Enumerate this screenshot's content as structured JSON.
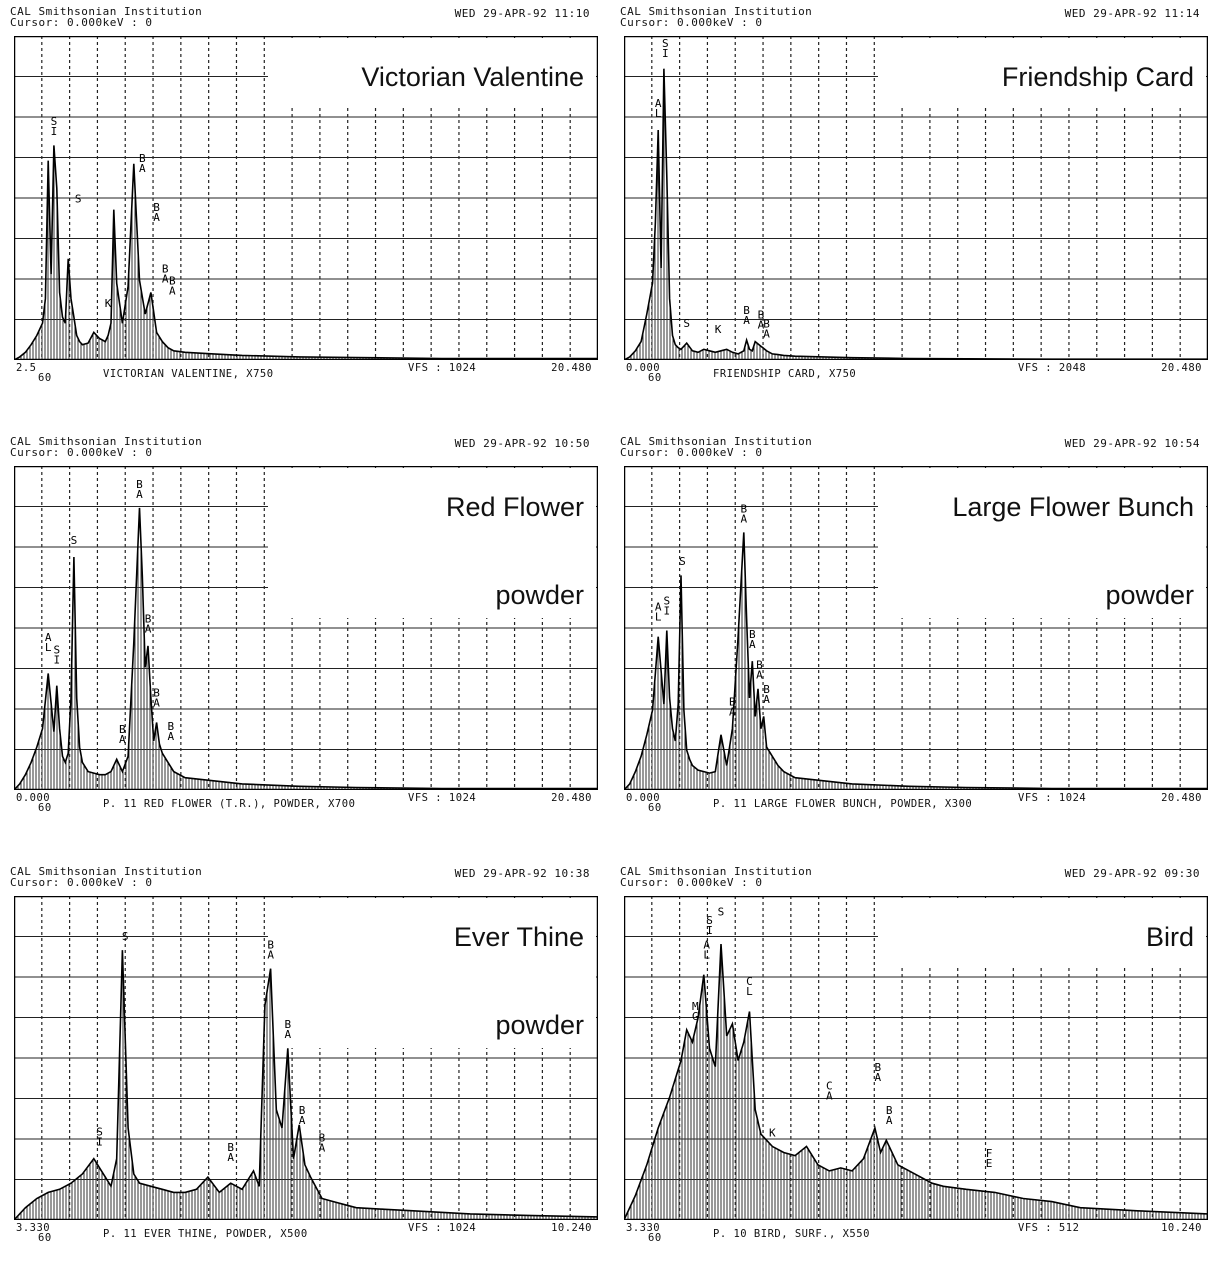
{
  "chart_data": [
    {
      "type": "area",
      "title": "Victorian Valentine",
      "header": {
        "line1": "CAL  Smithsonian Institution",
        "line2": "Cursor: 0.000keV : 0",
        "datetime": "WED 29-APR-92  11:10"
      },
      "footer": {
        "low": "2.5",
        "low2": "60",
        "description": "VICTORIAN VALENTINE, X750",
        "vfs": "VFS : 1024",
        "high": "20.480"
      },
      "xlim": [
        0,
        20.48
      ],
      "ylim": [
        0,
        1024
      ],
      "grid": true,
      "x": [
        0,
        0.2,
        0.4,
        0.6,
        0.8,
        1.0,
        1.1,
        1.2,
        1.3,
        1.4,
        1.5,
        1.6,
        1.7,
        1.8,
        1.9,
        2.0,
        2.1,
        2.2,
        2.3,
        2.4,
        2.6,
        2.8,
        3.0,
        3.2,
        3.3,
        3.4,
        3.5,
        3.6,
        3.8,
        4.0,
        4.2,
        4.4,
        4.6,
        4.8,
        5.0,
        5.2,
        5.4,
        5.6,
        6.0,
        7.0,
        8.0,
        10.0,
        12.0,
        15.0,
        20.48
      ],
      "y": [
        0,
        10,
        25,
        50,
        80,
        120,
        200,
        650,
        280,
        700,
        560,
        220,
        140,
        120,
        330,
        200,
        140,
        80,
        60,
        50,
        55,
        90,
        70,
        60,
        80,
        120,
        490,
        250,
        120,
        240,
        640,
        260,
        150,
        220,
        90,
        60,
        40,
        30,
        25,
        20,
        15,
        10,
        8,
        5,
        5
      ],
      "peaks": [
        {
          "label": "S\nI",
          "x": 1.4,
          "y": 720
        },
        {
          "label": "S",
          "x": 2.25,
          "y": 500
        },
        {
          "label": "K",
          "x": 3.3,
          "y": 160
        },
        {
          "label": "B\nA",
          "x": 4.5,
          "y": 600
        },
        {
          "label": "B\nA",
          "x": 5.0,
          "y": 440
        },
        {
          "label": "B\nA",
          "x": 5.3,
          "y": 240
        },
        {
          "label": "B\nA",
          "x": 5.55,
          "y": 200
        }
      ]
    },
    {
      "type": "area",
      "title": "Friendship Card",
      "header": {
        "line1": "CAL  Smithsonian Institution",
        "line2": "Cursor: 0.000keV : 0",
        "datetime": "WED 29-APR-92  11:14"
      },
      "footer": {
        "low": "0.000",
        "low2": "60",
        "description": "FRIENDSHIP CARD, X750",
        "vfs": "VFS : 2048",
        "high": "20.480"
      },
      "xlim": [
        0,
        20.48
      ],
      "ylim": [
        0,
        2048
      ],
      "grid": true,
      "x": [
        0,
        0.2,
        0.4,
        0.6,
        0.8,
        1.0,
        1.1,
        1.2,
        1.3,
        1.4,
        1.5,
        1.6,
        1.7,
        1.8,
        1.9,
        2.0,
        2.1,
        2.2,
        2.4,
        2.6,
        2.8,
        3.0,
        3.2,
        3.4,
        3.6,
        3.8,
        4.0,
        4.2,
        4.3,
        4.4,
        4.5,
        4.6,
        4.8,
        5.0,
        5.2,
        5.4,
        5.6,
        6.0,
        7.0,
        8.0,
        10.0,
        12.0,
        15.0,
        20.48
      ],
      "y": [
        0,
        20,
        60,
        120,
        300,
        500,
        900,
        1500,
        600,
        1900,
        1200,
        400,
        160,
        100,
        80,
        70,
        90,
        110,
        60,
        50,
        70,
        60,
        50,
        60,
        70,
        50,
        40,
        60,
        130,
        70,
        60,
        120,
        90,
        60,
        40,
        35,
        30,
        25,
        20,
        15,
        10,
        8,
        5,
        5
      ],
      "peaks": [
        {
          "label": "S\nI",
          "x": 1.45,
          "y": 1950
        },
        {
          "label": "A\nL",
          "x": 1.2,
          "y": 1560
        },
        {
          "label": "S",
          "x": 2.2,
          "y": 190
        },
        {
          "label": "K",
          "x": 3.3,
          "y": 150
        },
        {
          "label": "B\nA",
          "x": 4.3,
          "y": 210
        },
        {
          "label": "B\nA",
          "x": 4.8,
          "y": 180
        },
        {
          "label": "B\nA",
          "x": 5.0,
          "y": 120
        }
      ]
    },
    {
      "type": "area",
      "title": "Red Flower",
      "subtitle": "powder",
      "header": {
        "line1": "CAL  Smithsonian Institution",
        "line2": "Cursor: 0.000keV : 0",
        "datetime": "WED 29-APR-92  10:50"
      },
      "footer": {
        "low": "0.000",
        "low2": "60",
        "description": "P. 11 RED FLOWER (T.R.), POWDER, X700",
        "vfs": "VFS : 1024",
        "high": "20.480"
      },
      "xlim": [
        0,
        20.48
      ],
      "ylim": [
        0,
        1024
      ],
      "grid": true,
      "x": [
        0,
        0.2,
        0.4,
        0.6,
        0.8,
        1.0,
        1.2,
        1.4,
        1.5,
        1.6,
        1.7,
        1.8,
        1.9,
        2.0,
        2.1,
        2.2,
        2.3,
        2.4,
        2.6,
        2.8,
        3.0,
        3.2,
        3.4,
        3.6,
        3.8,
        4.0,
        4.2,
        4.4,
        4.5,
        4.6,
        4.7,
        4.8,
        4.9,
        5.0,
        5.1,
        5.2,
        5.4,
        5.6,
        6.0,
        7.0,
        8.0,
        10.0,
        12.0,
        15.0,
        20.48
      ],
      "y": [
        0,
        20,
        50,
        90,
        140,
        200,
        380,
        190,
        340,
        200,
        110,
        90,
        120,
        300,
        760,
        300,
        140,
        90,
        60,
        55,
        50,
        50,
        60,
        100,
        60,
        110,
        480,
        920,
        700,
        400,
        470,
        300,
        160,
        220,
        150,
        120,
        90,
        60,
        40,
        30,
        20,
        12,
        8,
        5,
        5
      ],
      "peaks": [
        {
          "label": "A\nL",
          "x": 1.2,
          "y": 440
        },
        {
          "label": "S\nI",
          "x": 1.5,
          "y": 400
        },
        {
          "label": "S",
          "x": 2.1,
          "y": 790
        },
        {
          "label": "B\nA",
          "x": 3.8,
          "y": 140
        },
        {
          "label": "B\nA",
          "x": 4.4,
          "y": 940
        },
        {
          "label": "B\nA",
          "x": 4.7,
          "y": 500
        },
        {
          "label": "B\nA",
          "x": 5.0,
          "y": 260
        },
        {
          "label": "B\nA",
          "x": 5.5,
          "y": 150
        }
      ]
    },
    {
      "type": "area",
      "title": "Large Flower Bunch",
      "subtitle": "powder",
      "header": {
        "line1": "CAL  Smithsonian Institution",
        "line2": "Cursor: 0.000keV : 0",
        "datetime": "WED 29-APR-92  10:54"
      },
      "footer": {
        "low": "0.000",
        "low2": "60",
        "description": "P. 11 LARGE FLOWER BUNCH, POWDER, X300",
        "vfs": "VFS : 1024",
        "high": "20.480"
      },
      "xlim": [
        0,
        20.48
      ],
      "ylim": [
        0,
        1024
      ],
      "grid": true,
      "x": [
        0,
        0.2,
        0.4,
        0.6,
        0.8,
        1.0,
        1.2,
        1.4,
        1.5,
        1.6,
        1.7,
        1.8,
        1.9,
        2.0,
        2.1,
        2.2,
        2.3,
        2.4,
        2.6,
        2.8,
        3.0,
        3.2,
        3.4,
        3.6,
        3.8,
        4.0,
        4.2,
        4.3,
        4.4,
        4.5,
        4.6,
        4.7,
        4.8,
        4.9,
        5.0,
        5.2,
        5.4,
        5.6,
        6.0,
        7.0,
        8.0,
        10.0,
        12.0,
        15.0,
        20.48
      ],
      "y": [
        0,
        20,
        60,
        110,
        180,
        260,
        500,
        280,
        520,
        300,
        200,
        160,
        280,
        700,
        260,
        130,
        100,
        80,
        65,
        60,
        55,
        60,
        180,
        80,
        200,
        500,
        840,
        560,
        300,
        420,
        240,
        330,
        200,
        240,
        140,
        110,
        80,
        60,
        40,
        30,
        20,
        12,
        8,
        5,
        5
      ],
      "peaks": [
        {
          "label": "A\nL",
          "x": 1.2,
          "y": 540
        },
        {
          "label": "S\nI",
          "x": 1.5,
          "y": 560
        },
        {
          "label": "S",
          "x": 2.05,
          "y": 720
        },
        {
          "label": "B\nA",
          "x": 3.8,
          "y": 230
        },
        {
          "label": "B\nA",
          "x": 4.2,
          "y": 860
        },
        {
          "label": "B\nA",
          "x": 4.5,
          "y": 450
        },
        {
          "label": "B\nA",
          "x": 4.75,
          "y": 350
        },
        {
          "label": "B\nA",
          "x": 5.0,
          "y": 270
        }
      ]
    },
    {
      "type": "area",
      "title": "Ever Thine",
      "subtitle": "powder",
      "header": {
        "line1": "CAL  Smithsonian Institution",
        "line2": "Cursor: 0.000keV : 0",
        "datetime": "WED 29-APR-92  10:38"
      },
      "footer": {
        "low": "3.330",
        "low2": "60",
        "description": "P. 11 EVER THINE, POWDER, X500",
        "vfs": "VFS : 1024",
        "high": "10.240"
      },
      "xlim": [
        0,
        10.24
      ],
      "ylim": [
        0,
        1024
      ],
      "grid": true,
      "x": [
        0,
        0.2,
        0.4,
        0.6,
        0.8,
        1.0,
        1.2,
        1.4,
        1.6,
        1.7,
        1.8,
        1.9,
        2.0,
        2.1,
        2.2,
        2.4,
        2.6,
        2.8,
        3.0,
        3.2,
        3.4,
        3.6,
        3.8,
        4.0,
        4.2,
        4.3,
        4.4,
        4.5,
        4.6,
        4.7,
        4.8,
        4.9,
        5.0,
        5.1,
        5.2,
        5.4,
        5.6,
        5.8,
        6.0,
        6.5,
        7.0,
        8.0,
        9.0,
        10.24
      ],
      "y": [
        0,
        40,
        70,
        90,
        100,
        120,
        150,
        200,
        140,
        110,
        200,
        880,
        300,
        150,
        120,
        110,
        100,
        90,
        90,
        100,
        140,
        90,
        120,
        100,
        160,
        110,
        700,
        820,
        360,
        300,
        560,
        200,
        310,
        180,
        140,
        70,
        60,
        50,
        40,
        35,
        30,
        20,
        15,
        10
      ],
      "peaks": [
        {
          "label": "S\nI",
          "x": 1.5,
          "y": 230
        },
        {
          "label": "S",
          "x": 1.95,
          "y": 900
        },
        {
          "label": "B\nA",
          "x": 3.8,
          "y": 180
        },
        {
          "label": "B\nA",
          "x": 4.5,
          "y": 840
        },
        {
          "label": "B\nA",
          "x": 4.8,
          "y": 580
        },
        {
          "label": "B\nA",
          "x": 5.05,
          "y": 300
        },
        {
          "label": "B\nA",
          "x": 5.4,
          "y": 210
        }
      ]
    },
    {
      "type": "area",
      "title": "Bird",
      "header": {
        "line1": "CAL  Smithsonian Institution",
        "line2": "Cursor: 0.000keV : 0",
        "datetime": "WED 29-APR-92  09:30"
      },
      "footer": {
        "low": "3.330",
        "low2": "60",
        "description": "P. 10 BIRD, SURF., X550",
        "vfs": "VFS : 512",
        "high": "10.240"
      },
      "xlim": [
        0,
        10.24
      ],
      "ylim": [
        0,
        512
      ],
      "grid": true,
      "x": [
        0,
        0.2,
        0.4,
        0.6,
        0.8,
        1.0,
        1.1,
        1.2,
        1.3,
        1.4,
        1.5,
        1.6,
        1.7,
        1.8,
        1.9,
        2.0,
        2.1,
        2.2,
        2.3,
        2.4,
        2.6,
        2.8,
        3.0,
        3.2,
        3.4,
        3.6,
        3.8,
        4.0,
        4.2,
        4.4,
        4.5,
        4.6,
        4.8,
        5.0,
        5.2,
        5.4,
        5.6,
        6.0,
        6.5,
        7.0,
        7.5,
        8.0,
        9.0,
        10.24
      ],
      "y": [
        0,
        40,
        90,
        150,
        200,
        260,
        310,
        290,
        330,
        400,
        280,
        250,
        450,
        300,
        320,
        260,
        290,
        340,
        180,
        140,
        120,
        110,
        105,
        120,
        90,
        80,
        85,
        80,
        100,
        150,
        110,
        130,
        90,
        80,
        70,
        60,
        55,
        50,
        45,
        35,
        30,
        20,
        15,
        10
      ],
      "peaks": [
        {
          "label": "M\nG",
          "x": 1.25,
          "y": 320
        },
        {
          "label": "A\nL",
          "x": 1.45,
          "y": 420
        },
        {
          "label": "S\nI",
          "x": 1.5,
          "y": 460
        },
        {
          "label": "S",
          "x": 1.7,
          "y": 490
        },
        {
          "label": "C\nL",
          "x": 2.2,
          "y": 360
        },
        {
          "label": "K",
          "x": 2.6,
          "y": 130
        },
        {
          "label": "C\nA",
          "x": 3.6,
          "y": 190
        },
        {
          "label": "B\nA",
          "x": 4.45,
          "y": 220
        },
        {
          "label": "B\nA",
          "x": 4.65,
          "y": 150
        },
        {
          "label": "F\nE",
          "x": 6.4,
          "y": 80
        }
      ]
    }
  ]
}
